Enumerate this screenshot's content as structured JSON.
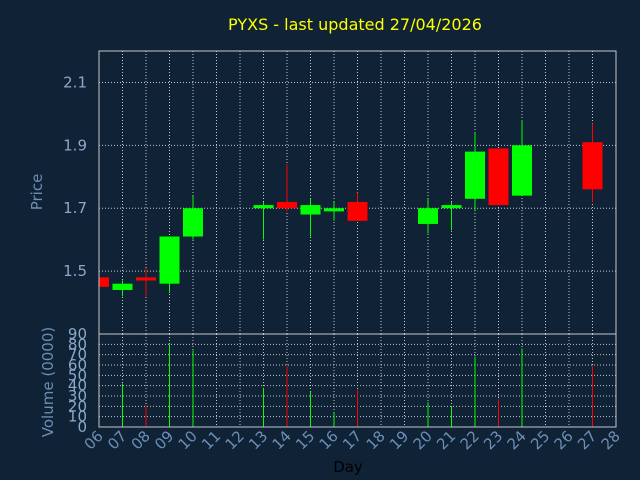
{
  "colors": {
    "background": "#0f2236",
    "frame": "#c8c8c8",
    "grid": "#c8c8c8",
    "up": "#00ff00",
    "down": "#ff0000",
    "title": "#ffff00",
    "axis_text": "#6b8fb5"
  },
  "chart_data": {
    "type": "candlestick",
    "title": "PYXS - last updated 27/04/2026",
    "xlabel": "Day",
    "ticks_x": [
      "06",
      "07",
      "08",
      "09",
      "10",
      "11",
      "12",
      "13",
      "14",
      "15",
      "16",
      "17",
      "18",
      "19",
      "20",
      "21",
      "22",
      "23",
      "24",
      "25",
      "26",
      "27",
      "28"
    ],
    "price_panel": {
      "ylabel": "Price",
      "ylim": [
        1.3,
        2.2
      ],
      "yticks": [
        1.5,
        1.7,
        1.9,
        2.1
      ],
      "ytick_labels": [
        "1.5",
        "1.7",
        "1.9",
        "2.1"
      ],
      "grid": true
    },
    "volume_panel": {
      "ylabel": "Volume (0000)",
      "ylim": [
        0,
        90
      ],
      "yticks": [
        0,
        10,
        20,
        30,
        40,
        50,
        60,
        70,
        80,
        90
      ],
      "ytick_labels": [
        "0",
        "10",
        "20",
        "30",
        "40",
        "50",
        "60",
        "70",
        "80",
        "90"
      ],
      "grid": true
    },
    "candles": [
      {
        "day": "06",
        "open": 1.48,
        "high": 1.48,
        "low": 1.45,
        "close": 1.45,
        "volume": 0
      },
      {
        "day": "07",
        "open": 1.44,
        "high": 1.47,
        "low": 1.42,
        "close": 1.46,
        "volume": 42
      },
      {
        "day": "08",
        "open": 1.48,
        "high": 1.51,
        "low": 1.42,
        "close": 1.47,
        "volume": 21
      },
      {
        "day": "09",
        "open": 1.46,
        "high": 1.61,
        "low": 1.43,
        "close": 1.61,
        "volume": 80
      },
      {
        "day": "10",
        "open": 1.61,
        "high": 1.74,
        "low": 1.6,
        "close": 1.7,
        "volume": 74
      },
      {
        "day": "13",
        "open": 1.7,
        "high": 1.72,
        "low": 1.6,
        "close": 1.71,
        "volume": 38
      },
      {
        "day": "14",
        "open": 1.72,
        "high": 1.84,
        "low": 1.69,
        "close": 1.7,
        "volume": 59
      },
      {
        "day": "15",
        "open": 1.68,
        "high": 1.73,
        "low": 1.61,
        "close": 1.71,
        "volume": 34
      },
      {
        "day": "16",
        "open": 1.69,
        "high": 1.72,
        "low": 1.66,
        "close": 1.7,
        "volume": 14
      },
      {
        "day": "17",
        "open": 1.72,
        "high": 1.75,
        "low": 1.66,
        "close": 1.66,
        "volume": 36
      },
      {
        "day": "20",
        "open": 1.65,
        "high": 1.73,
        "low": 1.62,
        "close": 1.7,
        "volume": 24
      },
      {
        "day": "21",
        "open": 1.7,
        "high": 1.72,
        "low": 1.63,
        "close": 1.71,
        "volume": 20
      },
      {
        "day": "22",
        "open": 1.73,
        "high": 1.94,
        "low": 1.69,
        "close": 1.88,
        "volume": 68
      },
      {
        "day": "23",
        "open": 1.89,
        "high": 1.89,
        "low": 1.71,
        "close": 1.71,
        "volume": 27
      },
      {
        "day": "24",
        "open": 1.74,
        "high": 1.98,
        "low": 1.74,
        "close": 1.9,
        "volume": 76
      },
      {
        "day": "27",
        "open": 1.91,
        "high": 1.97,
        "low": 1.72,
        "close": 1.76,
        "volume": 59
      }
    ]
  }
}
